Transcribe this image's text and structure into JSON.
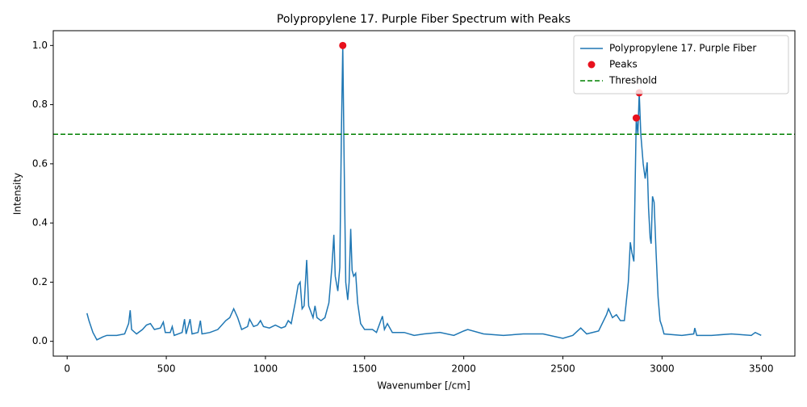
{
  "chart_data": {
    "type": "line",
    "title": "Polypropylene 17. Purple Fiber Spectrum with Peaks",
    "x_label": "Wavenumber [/cm]",
    "y_label": "Intensity",
    "xlim": [
      -70,
      3670
    ],
    "ylim": [
      -0.05,
      1.05
    ],
    "xticks": [
      0,
      500,
      1000,
      1500,
      2000,
      2500,
      3000,
      3500
    ],
    "yticks": [
      {
        "value": 0,
        "label": "0.0"
      },
      {
        "value": 0.2,
        "label": "0.2"
      },
      {
        "value": 0.4,
        "label": "0.4"
      },
      {
        "value": 0.6,
        "label": "0.6"
      },
      {
        "value": 0.8,
        "label": "0.8"
      },
      {
        "value": 1,
        "label": "1.0"
      }
    ],
    "legend": "upper right",
    "series": [
      {
        "name": "Polypropylene 17. Purple Fiber",
        "type": "line",
        "color": "#1f77b4",
        "x": [
          100,
          110,
          130,
          150,
          180,
          200,
          250,
          290,
          310,
          318,
          325,
          350,
          380,
          400,
          420,
          440,
          470,
          485,
          495,
          520,
          530,
          540,
          580,
          592,
          600,
          620,
          630,
          660,
          672,
          680,
          720,
          760,
          800,
          820,
          840,
          860,
          880,
          910,
          920,
          940,
          960,
          975,
          990,
          1020,
          1050,
          1080,
          1100,
          1115,
          1130,
          1150,
          1165,
          1175,
          1185,
          1195,
          1208,
          1218,
          1240,
          1250,
          1260,
          1280,
          1300,
          1320,
          1335,
          1345,
          1352,
          1365,
          1375,
          1383,
          1390,
          1397,
          1405,
          1415,
          1422,
          1430,
          1437,
          1445,
          1455,
          1465,
          1480,
          1500,
          1540,
          1560,
          1590,
          1600,
          1615,
          1640,
          1700,
          1750,
          1800,
          1880,
          1950,
          2000,
          2020,
          2100,
          2200,
          2300,
          2400,
          2500,
          2550,
          2590,
          2620,
          2680,
          2720,
          2730,
          2750,
          2770,
          2790,
          2810,
          2830,
          2840,
          2848,
          2858,
          2870,
          2878,
          2885,
          2893,
          2905,
          2915,
          2925,
          2932,
          2940,
          2945,
          2952,
          2960,
          2970,
          2980,
          2990,
          3000,
          3010,
          3100,
          3160,
          3165,
          3175,
          3250,
          3350,
          3450,
          3470,
          3500
        ],
        "values": [
          0.095,
          0.07,
          0.03,
          0.005,
          0.015,
          0.02,
          0.02,
          0.025,
          0.06,
          0.105,
          0.04,
          0.025,
          0.04,
          0.055,
          0.06,
          0.04,
          0.045,
          0.065,
          0.03,
          0.03,
          0.05,
          0.02,
          0.03,
          0.075,
          0.025,
          0.075,
          0.025,
          0.03,
          0.07,
          0.025,
          0.03,
          0.04,
          0.07,
          0.08,
          0.11,
          0.08,
          0.04,
          0.05,
          0.075,
          0.05,
          0.055,
          0.07,
          0.05,
          0.045,
          0.055,
          0.045,
          0.05,
          0.07,
          0.06,
          0.13,
          0.19,
          0.2,
          0.11,
          0.12,
          0.275,
          0.12,
          0.08,
          0.12,
          0.08,
          0.07,
          0.08,
          0.13,
          0.25,
          0.36,
          0.22,
          0.17,
          0.25,
          0.7,
          1.0,
          0.6,
          0.2,
          0.14,
          0.2,
          0.38,
          0.24,
          0.22,
          0.23,
          0.13,
          0.06,
          0.04,
          0.04,
          0.03,
          0.085,
          0.04,
          0.06,
          0.03,
          0.03,
          0.02,
          0.025,
          0.03,
          0.02,
          0.035,
          0.04,
          0.025,
          0.02,
          0.025,
          0.025,
          0.01,
          0.02,
          0.045,
          0.025,
          0.035,
          0.09,
          0.11,
          0.08,
          0.09,
          0.07,
          0.07,
          0.2,
          0.335,
          0.3,
          0.27,
          0.755,
          0.7,
          0.84,
          0.7,
          0.6,
          0.55,
          0.605,
          0.45,
          0.35,
          0.33,
          0.49,
          0.47,
          0.3,
          0.15,
          0.07,
          0.05,
          0.025,
          0.02,
          0.025,
          0.045,
          0.02,
          0.02,
          0.025,
          0.02,
          0.03,
          0.02
        ]
      },
      {
        "name": "Peaks",
        "type": "scatter",
        "color": "#e8111d",
        "x": [
          1390,
          2870,
          2885
        ],
        "values": [
          1.0,
          0.755,
          0.84
        ]
      }
    ],
    "threshold": {
      "name": "Threshold",
      "color": "green",
      "value": 0.7
    }
  }
}
